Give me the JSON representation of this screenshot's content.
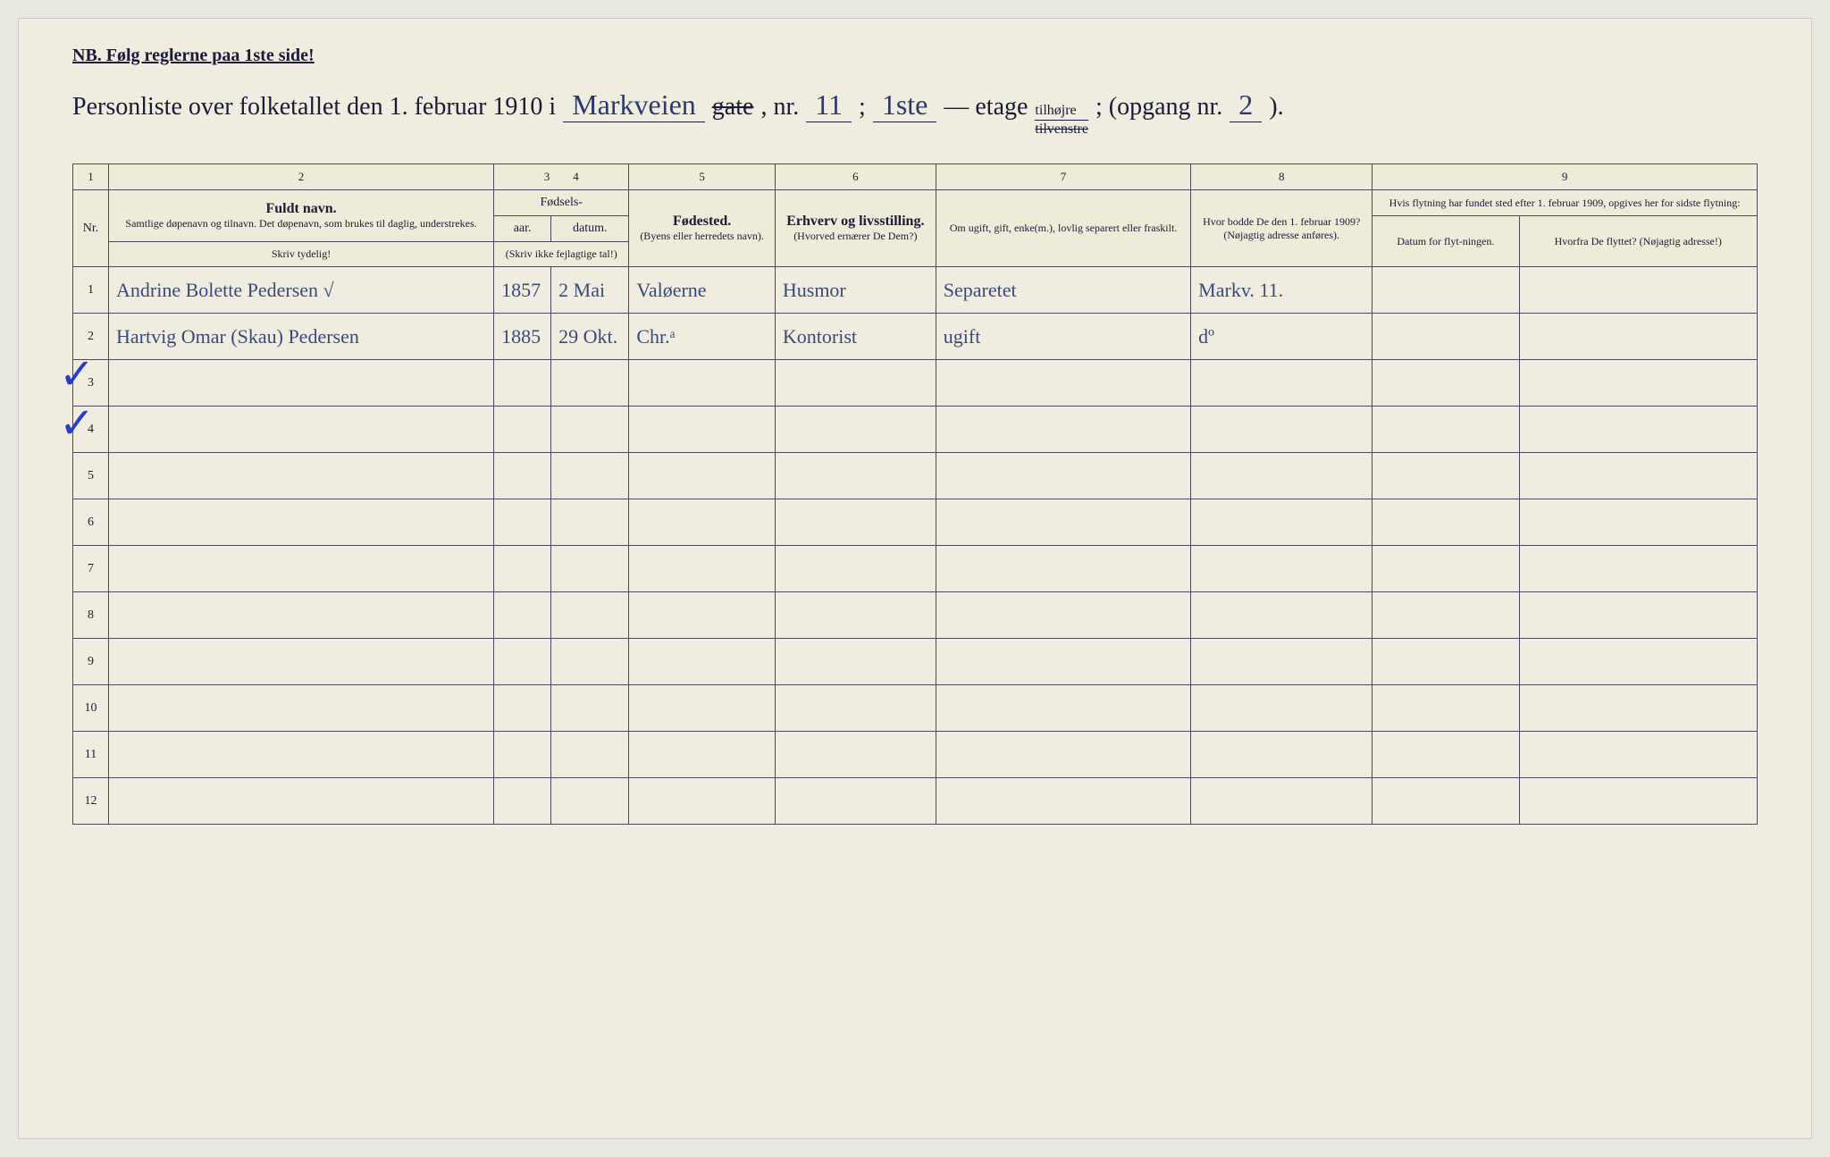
{
  "nb_text": "NB.  Følg reglerne paa 1ste side!",
  "title": {
    "prefix": "Personliste over folketallet den 1. februar 1910 i",
    "street": "Markveien",
    "gate_struck": "gate",
    "nr_label": ", nr.",
    "nr_value": "11",
    "semicolon": ";",
    "etage_value": "1ste",
    "etage_label": "— etage",
    "tilhojre": "tilhøjre",
    "tilvenstre": "tilvenstre",
    "opgang_label": "; (opgang nr.",
    "opgang_value": "2",
    "closing": ")."
  },
  "headers": {
    "col_nums": [
      "1",
      "2",
      "3",
      "4",
      "5",
      "6",
      "7",
      "8",
      "9"
    ],
    "nr": "Nr.",
    "navn_main": "Fuldt navn.",
    "navn_sub": "Samtlige døpenavn og tilnavn. Det døpenavn, som brukes til daglig, understrekes.",
    "navn_note": "Skriv tydelig!",
    "fodsels": "Fødsels-",
    "aar": "aar.",
    "datum": "datum.",
    "fodsels_note": "(Skriv ikke fejlagtige tal!)",
    "fodested_main": "Fødested.",
    "fodested_sub": "(Byens eller herredets navn).",
    "erhverv_main": "Erhverv og livsstilling.",
    "erhverv_sub": "(Hvorved ernærer De Dem?)",
    "ugift": "Om ugift, gift, enke(m.), lovlig separert eller fraskilt.",
    "bodde_main": "Hvor bodde De den 1. februar 1909?",
    "bodde_sub": "(Nøjagtig adresse anføres).",
    "flytning_main": "Hvis flytning har fundet sted efter 1. februar 1909, opgives her for sidste flytning:",
    "flytning_datum": "Datum for flyt-ningen.",
    "flytning_hvorfra": "Hvorfra De flyttet? (Nøjagtig adresse!)"
  },
  "rows": [
    {
      "nr": "1",
      "navn": "Andrine Bolette Pedersen  √",
      "aar": "1857",
      "datum": "2 Mai",
      "fodested": "Valøerne",
      "erhverv": "Husmor",
      "ugift": "Separetet",
      "bodde": "Markv. 11.",
      "flyt_datum": "",
      "flyt_hvorfra": ""
    },
    {
      "nr": "2",
      "navn": "Hartvig Omar (Skau) Pedersen",
      "aar": "1885",
      "datum": "29 Okt.",
      "fodested": "Chr.ᵃ",
      "erhverv": "Kontorist",
      "ugift": "ugift",
      "bodde": "dº",
      "flyt_datum": "",
      "flyt_hvorfra": ""
    }
  ],
  "empty_rows": [
    "3",
    "4",
    "5",
    "6",
    "7",
    "8",
    "9",
    "10",
    "11",
    "12"
  ],
  "colors": {
    "paper": "#f0ede0",
    "ink_printed": "#1a1a3a",
    "ink_handwritten": "#3a4a7a",
    "checkmark": "#2a3aca",
    "border": "#4a4a5a"
  }
}
